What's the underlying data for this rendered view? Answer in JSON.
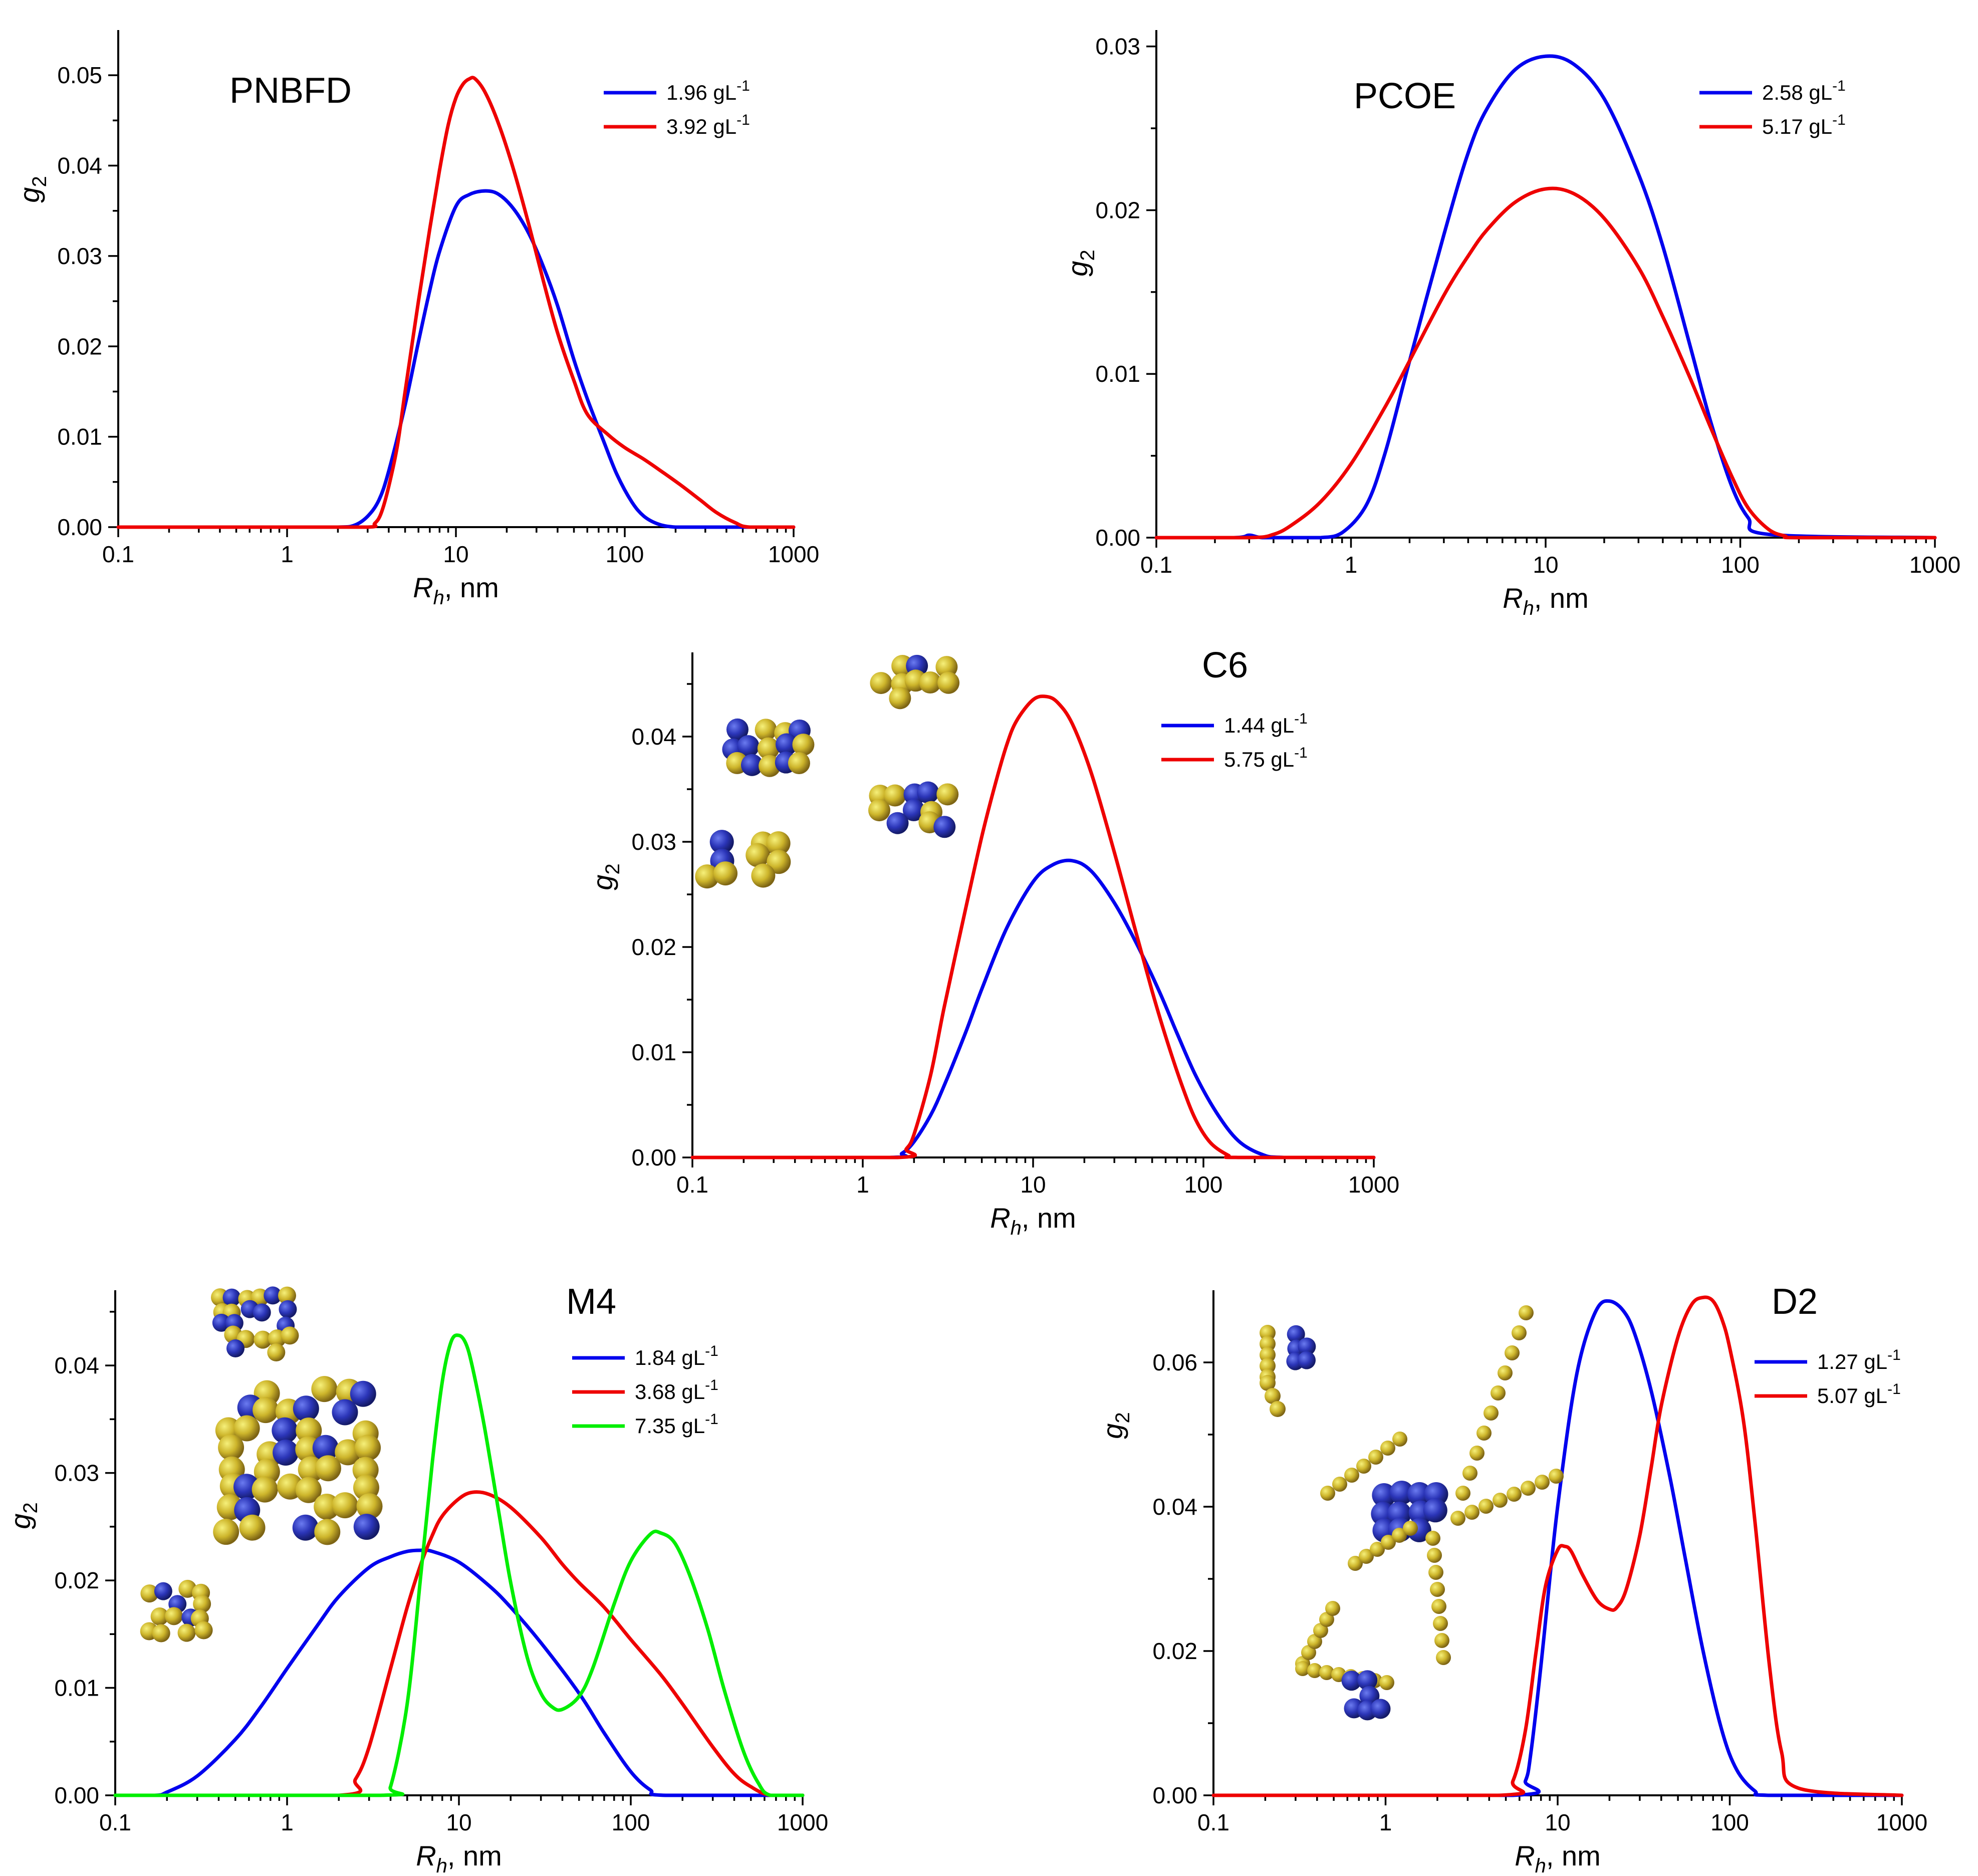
{
  "chart_data": [
    {
      "type": "line",
      "title": "PNBFD",
      "xlabel": "R_h, nm",
      "ylabel": "g_2",
      "xscale": "log",
      "xlim": [
        0.1,
        1000
      ],
      "ylim": [
        0,
        0.055
      ],
      "xticks": [
        0.1,
        1,
        10,
        100,
        1000
      ],
      "xtick_labels": [
        "0.1",
        "1",
        "10",
        "100",
        "1000"
      ],
      "yticks": [
        0,
        0.01,
        0.02,
        0.03,
        0.04,
        0.05
      ],
      "ytick_labels": [
        "0.00",
        "0.01",
        "0.02",
        "0.03",
        "0.04",
        "0.05"
      ],
      "legend_position": "top-right",
      "series": [
        {
          "name": "1.96 gL",
          "unit_suffix": "-1",
          "color": "#0000ee",
          "x": [
            0.1,
            1,
            2,
            2.5,
            3,
            3.5,
            4,
            5,
            6,
            7,
            8,
            10,
            12,
            15,
            18,
            22,
            27,
            33,
            40,
            50,
            60,
            75,
            90,
            110,
            130,
            160,
            200,
            250,
            1000
          ],
          "y": [
            0,
            0,
            0,
            0.0002,
            0.0012,
            0.003,
            0.0062,
            0.0135,
            0.0205,
            0.0262,
            0.0305,
            0.0355,
            0.0368,
            0.0372,
            0.0368,
            0.0352,
            0.0325,
            0.0288,
            0.0245,
            0.0185,
            0.0142,
            0.0095,
            0.0058,
            0.0028,
            0.0012,
            0.0003,
            0,
            0,
            0
          ]
        },
        {
          "name": "3.92 gL",
          "unit_suffix": "-1",
          "color": "#ee0000",
          "x": [
            0.1,
            1,
            3,
            3.3,
            3.6,
            4,
            4.5,
            5,
            6,
            7,
            8,
            9,
            10,
            11,
            12,
            13,
            15,
            18,
            22,
            27,
            33,
            40,
            50,
            60,
            80,
            100,
            130,
            170,
            220,
            280,
            350,
            450,
            550,
            1000
          ],
          "y": [
            0,
            0,
            0,
            0.0004,
            0.0015,
            0.0045,
            0.009,
            0.015,
            0.025,
            0.033,
            0.0395,
            0.0445,
            0.0475,
            0.049,
            0.0496,
            0.0496,
            0.048,
            0.0445,
            0.0395,
            0.0335,
            0.0272,
            0.0215,
            0.0162,
            0.0125,
            0.0102,
            0.0088,
            0.0075,
            0.006,
            0.0045,
            0.003,
            0.0016,
            0.0005,
            0,
            0
          ]
        }
      ]
    },
    {
      "type": "line",
      "title": "PCOE",
      "xlabel": "R_h, nm",
      "ylabel": "g_2",
      "xscale": "log",
      "xlim": [
        0.1,
        1000
      ],
      "ylim": [
        0,
        0.031
      ],
      "xticks": [
        0.1,
        1,
        10,
        100,
        1000
      ],
      "xtick_labels": [
        "0.1",
        "1",
        "10",
        "100",
        "1000"
      ],
      "yticks": [
        0,
        0.01,
        0.02,
        0.03
      ],
      "ytick_labels": [
        "0.00",
        "0.01",
        "0.02",
        "0.03"
      ],
      "legend_position": "top-right",
      "series": [
        {
          "name": "2.58 gL",
          "unit_suffix": "-1",
          "color": "#0000ee",
          "x": [
            0.1,
            0.25,
            0.3,
            0.35,
            0.5,
            0.7,
            0.9,
            1.2,
            1.5,
            2,
            3,
            4,
            5,
            7,
            10,
            14,
            20,
            30,
            40,
            55,
            70,
            90,
            110,
            140,
            1000
          ],
          "y": [
            0,
            0,
            0.00015,
            0,
            0,
            0,
            0.0003,
            0.002,
            0.0052,
            0.0108,
            0.0185,
            0.0235,
            0.0262,
            0.0286,
            0.0294,
            0.0289,
            0.0268,
            0.0222,
            0.0178,
            0.0118,
            0.0072,
            0.0032,
            0.0012,
            0.0002,
            0
          ]
        },
        {
          "name": "5.17 gL",
          "unit_suffix": "-1",
          "color": "#ee0000",
          "x": [
            0.1,
            0.3,
            0.4,
            0.5,
            0.7,
            1,
            1.5,
            2,
            3,
            4,
            5,
            7,
            10,
            14,
            20,
            30,
            40,
            55,
            70,
            90,
            110,
            140,
            170,
            200,
            1000
          ],
          "y": [
            0,
            0,
            0.0002,
            0.0008,
            0.0022,
            0.0045,
            0.008,
            0.0108,
            0.0148,
            0.0172,
            0.0188,
            0.0205,
            0.0213,
            0.021,
            0.0195,
            0.0165,
            0.0135,
            0.0098,
            0.0068,
            0.0038,
            0.0018,
            0.0005,
            0.0001,
            0,
            0
          ]
        }
      ]
    },
    {
      "type": "line",
      "title": "C6",
      "xlabel": "R_h, nm",
      "ylabel": "g_2",
      "xscale": "log",
      "xlim": [
        0.1,
        1000
      ],
      "ylim": [
        0,
        0.048
      ],
      "xticks": [
        0.1,
        1,
        10,
        100,
        1000
      ],
      "xtick_labels": [
        "0.1",
        "1",
        "10",
        "100",
        "1000"
      ],
      "yticks": [
        0,
        0.01,
        0.02,
        0.03,
        0.04
      ],
      "ytick_labels": [
        "0.00",
        "0.01",
        "0.02",
        "0.03",
        "0.04"
      ],
      "legend_position": "top-right",
      "series": [
        {
          "name": "1.44 gL",
          "unit_suffix": "-1",
          "color": "#0000ee",
          "x": [
            0.1,
            1.4,
            1.7,
            2,
            2.5,
            3,
            4,
            5,
            7,
            10,
            13,
            17,
            22,
            30,
            40,
            55,
            70,
            90,
            120,
            160,
            220,
            300,
            1000
          ],
          "y": [
            0,
            0,
            0.0004,
            0.0015,
            0.004,
            0.0068,
            0.0118,
            0.016,
            0.0218,
            0.0262,
            0.0278,
            0.0282,
            0.0272,
            0.0242,
            0.0205,
            0.0158,
            0.0118,
            0.0078,
            0.0042,
            0.0016,
            0.0003,
            0,
            0
          ]
        },
        {
          "name": "5.75 gL",
          "unit_suffix": "-1",
          "color": "#ee0000",
          "x": [
            0.1,
            1.6,
            1.8,
            2,
            2.5,
            3,
            4,
            5,
            6,
            7,
            8,
            10,
            12,
            14,
            17,
            22,
            30,
            40,
            50,
            60,
            75,
            90,
            110,
            140,
            160,
            1000
          ],
          "y": [
            0,
            0,
            0.0008,
            0.0022,
            0.0078,
            0.0142,
            0.0235,
            0.0305,
            0.0355,
            0.0392,
            0.0415,
            0.0435,
            0.0438,
            0.0432,
            0.0412,
            0.0365,
            0.029,
            0.0215,
            0.0158,
            0.0115,
            0.0068,
            0.0036,
            0.0014,
            0.0002,
            0,
            0
          ]
        }
      ]
    },
    {
      "type": "line",
      "title": "M4",
      "xlabel": "R_h, nm",
      "ylabel": "g_2",
      "xscale": "log",
      "xlim": [
        0.1,
        1000
      ],
      "ylim": [
        0,
        0.047
      ],
      "xticks": [
        0.1,
        1,
        10,
        100,
        1000
      ],
      "xtick_labels": [
        "0.1",
        "1",
        "10",
        "100",
        "1000"
      ],
      "yticks": [
        0,
        0.01,
        0.02,
        0.03,
        0.04
      ],
      "ytick_labels": [
        "0.00",
        "0.01",
        "0.02",
        "0.03",
        "0.04"
      ],
      "legend_position": "top-right",
      "series": [
        {
          "name": "1.84 gL",
          "unit_suffix": "-1",
          "color": "#0000ee",
          "x": [
            0.1,
            0.17,
            0.2,
            0.3,
            0.5,
            0.7,
            1,
            1.5,
            2,
            3,
            4,
            5,
            6,
            7,
            10,
            15,
            20,
            30,
            50,
            70,
            100,
            130,
            160,
            1000
          ],
          "y": [
            0,
            0,
            0.0003,
            0.0018,
            0.0052,
            0.0082,
            0.0118,
            0.0158,
            0.0185,
            0.0212,
            0.0222,
            0.0227,
            0.0228,
            0.0227,
            0.0217,
            0.0195,
            0.0175,
            0.0142,
            0.0095,
            0.0058,
            0.0022,
            0.0005,
            0,
            0
          ]
        },
        {
          "name": "3.68 gL",
          "unit_suffix": "-1",
          "color": "#ee0000",
          "x": [
            0.1,
            2,
            2.5,
            3,
            4,
            5,
            6,
            7,
            8,
            10,
            12,
            15,
            20,
            30,
            40,
            50,
            70,
            100,
            150,
            200,
            300,
            400,
            500,
            650,
            1000
          ],
          "y": [
            0,
            0,
            0.0015,
            0.0045,
            0.0118,
            0.0175,
            0.0215,
            0.0242,
            0.026,
            0.0276,
            0.0282,
            0.028,
            0.0268,
            0.024,
            0.0215,
            0.0198,
            0.0175,
            0.0145,
            0.0112,
            0.0085,
            0.0045,
            0.002,
            0.0008,
            0,
            0
          ]
        },
        {
          "name": "7.35 gL",
          "unit_suffix": "-1",
          "color": "#00ee00",
          "x": [
            0.1,
            3.5,
            4,
            5,
            6,
            7,
            8,
            9,
            10,
            11,
            12,
            14,
            17,
            20,
            25,
            30,
            35,
            40,
            50,
            60,
            80,
            100,
            130,
            150,
            180,
            220,
            280,
            350,
            450,
            550,
            650,
            1000
          ],
          "y": [
            0,
            0,
            0.0008,
            0.0085,
            0.0205,
            0.031,
            0.0385,
            0.0422,
            0.0428,
            0.042,
            0.0398,
            0.0345,
            0.0265,
            0.0198,
            0.0128,
            0.0095,
            0.0082,
            0.008,
            0.0092,
            0.0118,
            0.0178,
            0.0218,
            0.0243,
            0.0244,
            0.0235,
            0.0205,
            0.0155,
            0.0098,
            0.0042,
            0.0012,
            0,
            0
          ]
        }
      ]
    },
    {
      "type": "line",
      "title": "D2",
      "xlabel": "R_h, nm",
      "ylabel": "g_2",
      "xscale": "log",
      "xlim": [
        0.1,
        1000
      ],
      "ylim": [
        0,
        0.07
      ],
      "xticks": [
        0.1,
        1,
        10,
        100,
        1000
      ],
      "xtick_labels": [
        "0.1",
        "1",
        "10",
        "100",
        "1000"
      ],
      "yticks": [
        0,
        0.02,
        0.04,
        0.06
      ],
      "ytick_labels": [
        "0.00",
        "0.02",
        "0.04",
        "0.06"
      ],
      "legend_position": "top-right",
      "series": [
        {
          "name": "1.27 gL",
          "unit_suffix": "-1",
          "color": "#0000ee",
          "x": [
            0.1,
            5.5,
            6.5,
            7,
            8,
            9,
            10,
            12,
            14,
            17,
            20,
            24,
            28,
            35,
            45,
            55,
            70,
            90,
            110,
            140,
            170,
            1000
          ],
          "y": [
            0,
            0,
            0.002,
            0.006,
            0.018,
            0.03,
            0.04,
            0.054,
            0.062,
            0.0675,
            0.0685,
            0.0672,
            0.064,
            0.056,
            0.044,
            0.033,
            0.02,
            0.009,
            0.0035,
            0.0006,
            0,
            0
          ]
        },
        {
          "name": "5.07 gL",
          "unit_suffix": "-1",
          "color": "#ee0000",
          "x": [
            0.1,
            4.5,
            5.5,
            6.5,
            7.5,
            8.5,
            10,
            11,
            12,
            14,
            17,
            20,
            22,
            25,
            30,
            35,
            40,
            50,
            60,
            70,
            80,
            90,
            100,
            120,
            140,
            170,
            200,
            250,
            1000
          ],
          "y": [
            0,
            0,
            0.002,
            0.009,
            0.02,
            0.029,
            0.034,
            0.0345,
            0.0338,
            0.0305,
            0.027,
            0.0258,
            0.026,
            0.0285,
            0.036,
            0.0455,
            0.054,
            0.0635,
            0.068,
            0.069,
            0.0685,
            0.066,
            0.062,
            0.052,
            0.038,
            0.018,
            0.006,
            0.001,
            0
          ]
        }
      ]
    }
  ]
}
